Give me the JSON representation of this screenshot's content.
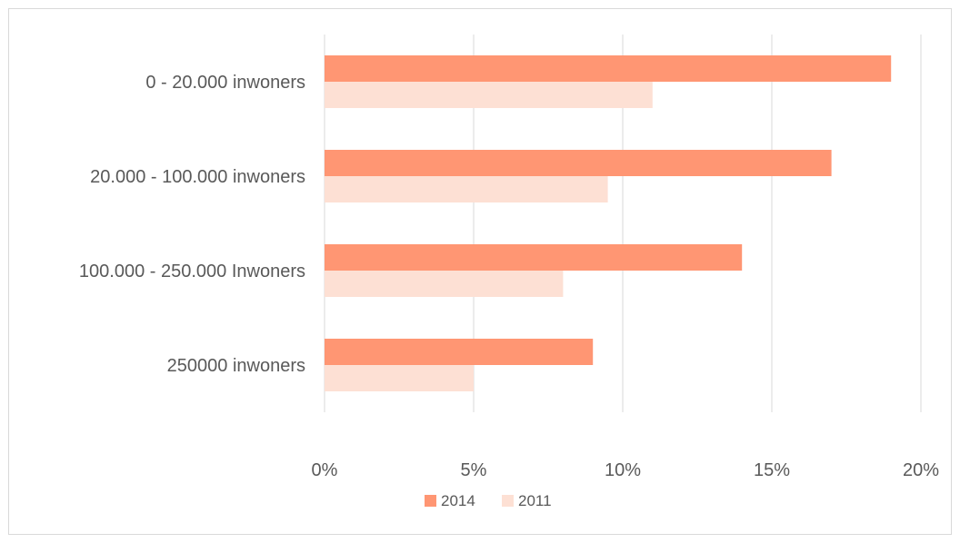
{
  "chart_data": {
    "type": "bar",
    "orientation": "horizontal",
    "categories": [
      "0 - 20.000 inwoners",
      "20.000 - 100.000 inwoners",
      "100.000 - 250.000 Inwoners",
      "250000 inwoners"
    ],
    "series": [
      {
        "name": "2014",
        "values": [
          0.19,
          0.17,
          0.14,
          0.09
        ],
        "color": "#ff9673"
      },
      {
        "name": "2011",
        "values": [
          0.11,
          0.095,
          0.08,
          0.05
        ],
        "color": "#fde0d4"
      }
    ],
    "xlim": [
      0,
      0.2
    ],
    "xticks": [
      0,
      0.05,
      0.1,
      0.15,
      0.2
    ],
    "xtick_labels": [
      "0%",
      "5%",
      "10%",
      "15%",
      "20%"
    ],
    "grid": "vertical",
    "legend_position": "bottom",
    "title": "",
    "xlabel": "",
    "ylabel": ""
  }
}
